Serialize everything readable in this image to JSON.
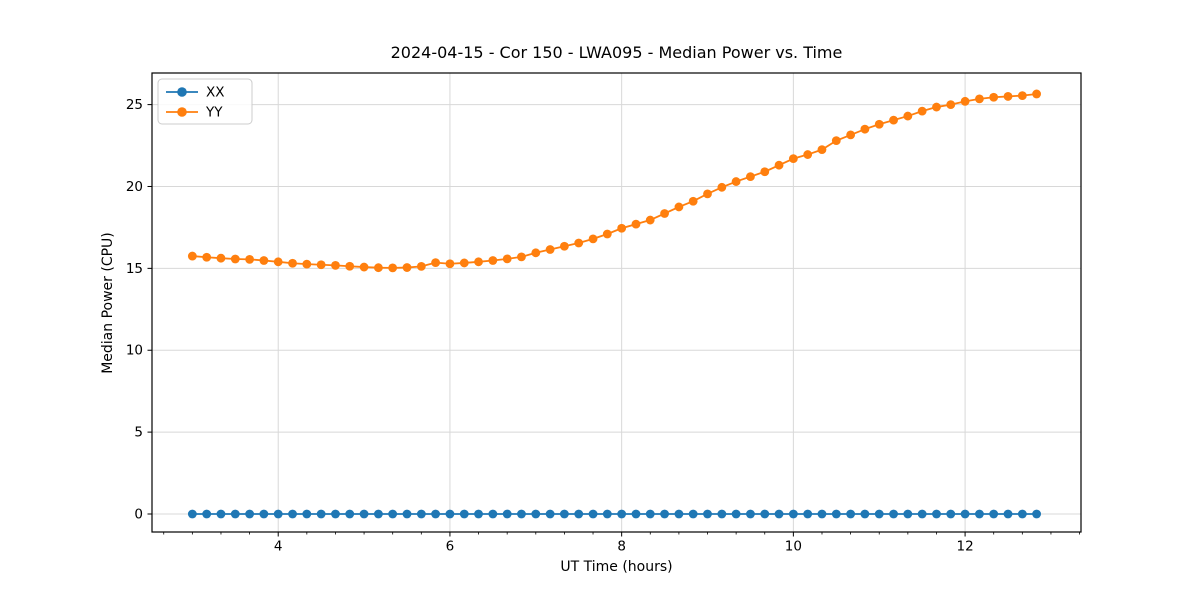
{
  "figure": {
    "background": "#ffffff"
  },
  "chart_data": {
    "type": "line",
    "title": "2024-04-15 - Cor 150 - LWA095 - Median Power vs. Time",
    "xlabel": "UT Time (hours)",
    "ylabel": "Median Power (CPU)",
    "xlim": [
      2.53,
      13.35
    ],
    "ylim": [
      -1.1,
      26.93
    ],
    "x_major_ticks": [
      4,
      6,
      8,
      10,
      12
    ],
    "x_tick_labels": [
      "4",
      "6",
      "8",
      "10",
      "12"
    ],
    "x_minor_step": 0.3333333,
    "y_major_ticks": [
      0,
      5,
      10,
      15,
      20,
      25
    ],
    "y_tick_labels": [
      "0",
      "5",
      "10",
      "15",
      "20",
      "25"
    ],
    "grid": true,
    "grid_color": "#d8d8d8",
    "spine_color": "#000000",
    "legend_position": "upper-left",
    "x": [
      3.0,
      3.167,
      3.333,
      3.5,
      3.667,
      3.833,
      4.0,
      4.167,
      4.333,
      4.5,
      4.667,
      4.833,
      5.0,
      5.167,
      5.333,
      5.5,
      5.667,
      5.833,
      6.0,
      6.167,
      6.333,
      6.5,
      6.667,
      6.833,
      7.0,
      7.167,
      7.333,
      7.5,
      7.667,
      7.833,
      8.0,
      8.167,
      8.333,
      8.5,
      8.667,
      8.833,
      9.0,
      9.167,
      9.333,
      9.5,
      9.667,
      9.833,
      10.0,
      10.167,
      10.333,
      10.5,
      10.667,
      10.833,
      11.0,
      11.167,
      11.333,
      11.5,
      11.667,
      11.833,
      12.0,
      12.167,
      12.333,
      12.5,
      12.667,
      12.833
    ],
    "series": [
      {
        "name": "XX",
        "color": "#1f77b4",
        "values": [
          0,
          0,
          0,
          0,
          0,
          0,
          0,
          0,
          0,
          0,
          0,
          0,
          0,
          0,
          0,
          0,
          0,
          0,
          0,
          0,
          0,
          0,
          0,
          0,
          0,
          0,
          0,
          0,
          0,
          0,
          0,
          0,
          0,
          0,
          0,
          0,
          0,
          0,
          0,
          0,
          0,
          0,
          0,
          0,
          0,
          0,
          0,
          0,
          0,
          0,
          0,
          0,
          0,
          0,
          0,
          0,
          0,
          0,
          0,
          0
        ]
      },
      {
        "name": "YY",
        "color": "#ff7f0e",
        "values": [
          15.75,
          15.68,
          15.62,
          15.57,
          15.55,
          15.48,
          15.4,
          15.31,
          15.26,
          15.22,
          15.18,
          15.13,
          15.08,
          15.04,
          15.03,
          15.05,
          15.12,
          15.35,
          15.28,
          15.33,
          15.4,
          15.48,
          15.58,
          15.7,
          15.95,
          16.15,
          16.35,
          16.55,
          16.8,
          17.1,
          17.45,
          17.7,
          17.95,
          18.35,
          18.75,
          19.1,
          19.55,
          19.95,
          20.3,
          20.6,
          20.9,
          21.3,
          21.7,
          21.95,
          22.25,
          22.8,
          23.15,
          23.5,
          23.8,
          24.05,
          24.3,
          24.6,
          24.85,
          25.0,
          25.2,
          25.35,
          25.45,
          25.5,
          25.55,
          25.65
        ]
      }
    ]
  }
}
